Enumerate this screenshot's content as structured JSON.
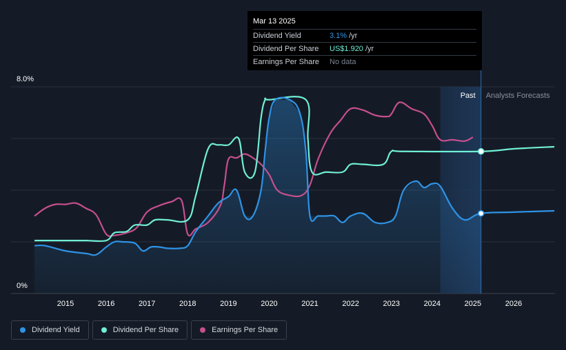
{
  "chart_data": {
    "type": "line",
    "ylim": [
      0,
      8.0
    ],
    "y_top_label": "8.0%",
    "y_bottom_label": "0%",
    "x_tick_labels": [
      "2015",
      "2016",
      "2017",
      "2018",
      "2019",
      "2020",
      "2021",
      "2022",
      "2023",
      "2024",
      "2025",
      "2026"
    ],
    "past_label": "Past",
    "forecast_label": "Analysts Forecasts",
    "grid": true,
    "series": [
      {
        "name": "Dividend Yield",
        "color": "#2e93e6",
        "unit": "%",
        "points": [
          [
            2014.24,
            1.85
          ],
          [
            2014.5,
            1.85
          ],
          [
            2015.0,
            1.65
          ],
          [
            2015.5,
            1.55
          ],
          [
            2015.75,
            1.5
          ],
          [
            2016.0,
            1.8
          ],
          [
            2016.2,
            2.0
          ],
          [
            2016.4,
            2.0
          ],
          [
            2016.7,
            1.95
          ],
          [
            2016.9,
            1.65
          ],
          [
            2017.1,
            1.8
          ],
          [
            2017.3,
            1.8
          ],
          [
            2017.5,
            1.75
          ],
          [
            2017.8,
            1.75
          ],
          [
            2018.0,
            1.85
          ],
          [
            2018.2,
            2.4
          ],
          [
            2018.5,
            3.0
          ],
          [
            2018.75,
            3.5
          ],
          [
            2019.0,
            3.75
          ],
          [
            2019.2,
            4.0
          ],
          [
            2019.4,
            3.0
          ],
          [
            2019.6,
            3.0
          ],
          [
            2019.8,
            4.0
          ],
          [
            2019.9,
            5.5
          ],
          [
            2020.0,
            6.8
          ],
          [
            2020.15,
            7.5
          ],
          [
            2020.5,
            7.5
          ],
          [
            2020.75,
            7.0
          ],
          [
            2020.9,
            5.5
          ],
          [
            2021.0,
            3.0
          ],
          [
            2021.2,
            3.0
          ],
          [
            2021.4,
            3.0
          ],
          [
            2021.6,
            3.0
          ],
          [
            2021.8,
            2.75
          ],
          [
            2022.0,
            3.0
          ],
          [
            2022.3,
            3.1
          ],
          [
            2022.6,
            2.75
          ],
          [
            2022.9,
            2.75
          ],
          [
            2023.1,
            3.0
          ],
          [
            2023.3,
            4.0
          ],
          [
            2023.6,
            4.35
          ],
          [
            2023.8,
            4.1
          ],
          [
            2024.0,
            4.25
          ],
          [
            2024.2,
            4.15
          ],
          [
            2024.5,
            3.3
          ],
          [
            2024.8,
            2.85
          ],
          [
            2025.2,
            3.1
          ],
          [
            2026.0,
            3.15
          ],
          [
            2027.0,
            3.2
          ]
        ]
      },
      {
        "name": "Dividend Per Share",
        "color": "#70f0d6",
        "unit": "US$",
        "points": [
          [
            2014.24,
            2.05
          ],
          [
            2014.5,
            2.05
          ],
          [
            2015.0,
            2.05
          ],
          [
            2015.5,
            2.05
          ],
          [
            2016.0,
            2.05
          ],
          [
            2016.2,
            2.35
          ],
          [
            2016.5,
            2.4
          ],
          [
            2016.7,
            2.65
          ],
          [
            2017.0,
            2.65
          ],
          [
            2017.2,
            2.85
          ],
          [
            2017.5,
            2.85
          ],
          [
            2018.0,
            2.85
          ],
          [
            2018.2,
            3.8
          ],
          [
            2018.5,
            5.6
          ],
          [
            2018.75,
            5.75
          ],
          [
            2019.0,
            5.75
          ],
          [
            2019.25,
            6.0
          ],
          [
            2019.4,
            4.7
          ],
          [
            2019.65,
            4.7
          ],
          [
            2019.8,
            6.8
          ],
          [
            2019.9,
            7.5
          ],
          [
            2020.0,
            7.5
          ],
          [
            2020.9,
            7.5
          ],
          [
            2020.95,
            6.0
          ],
          [
            2021.05,
            4.7
          ],
          [
            2021.4,
            4.7
          ],
          [
            2021.8,
            4.7
          ],
          [
            2022.0,
            5.0
          ],
          [
            2022.3,
            5.0
          ],
          [
            2022.8,
            5.0
          ],
          [
            2023.0,
            5.5
          ],
          [
            2023.3,
            5.5
          ],
          [
            2025.2,
            5.5
          ],
          [
            2026.0,
            5.6
          ],
          [
            2027.0,
            5.68
          ]
        ]
      },
      {
        "name": "Earnings Per Share",
        "color": "#c64f8e",
        "unit": "US$",
        "points": [
          [
            2014.24,
            3.0
          ],
          [
            2014.5,
            3.3
          ],
          [
            2014.75,
            3.45
          ],
          [
            2015.0,
            3.45
          ],
          [
            2015.25,
            3.5
          ],
          [
            2015.5,
            3.3
          ],
          [
            2015.75,
            3.05
          ],
          [
            2016.0,
            2.3
          ],
          [
            2016.2,
            2.25
          ],
          [
            2016.5,
            2.35
          ],
          [
            2016.75,
            2.55
          ],
          [
            2017.0,
            3.15
          ],
          [
            2017.3,
            3.4
          ],
          [
            2017.6,
            3.55
          ],
          [
            2017.85,
            3.6
          ],
          [
            2018.0,
            2.3
          ],
          [
            2018.2,
            2.5
          ],
          [
            2018.5,
            2.75
          ],
          [
            2018.8,
            3.4
          ],
          [
            2018.9,
            4.2
          ],
          [
            2019.0,
            5.2
          ],
          [
            2019.2,
            5.25
          ],
          [
            2019.4,
            5.4
          ],
          [
            2019.6,
            5.25
          ],
          [
            2019.8,
            5.0
          ],
          [
            2020.0,
            4.6
          ],
          [
            2020.2,
            4.0
          ],
          [
            2020.5,
            3.8
          ],
          [
            2020.8,
            3.8
          ],
          [
            2021.0,
            4.2
          ],
          [
            2021.2,
            5.2
          ],
          [
            2021.5,
            6.2
          ],
          [
            2021.75,
            6.7
          ],
          [
            2022.0,
            7.15
          ],
          [
            2022.3,
            7.1
          ],
          [
            2022.6,
            6.9
          ],
          [
            2022.9,
            6.85
          ],
          [
            2023.0,
            6.95
          ],
          [
            2023.2,
            7.4
          ],
          [
            2023.5,
            7.15
          ],
          [
            2023.8,
            6.95
          ],
          [
            2024.0,
            6.5
          ],
          [
            2024.2,
            5.95
          ],
          [
            2024.5,
            5.95
          ],
          [
            2024.8,
            5.9
          ],
          [
            2025.0,
            6.05
          ]
        ]
      }
    ],
    "markers": [
      {
        "series": "Dividend Per Share",
        "x": 2025.2,
        "y": 5.5
      },
      {
        "series": "Dividend Yield",
        "x": 2025.2,
        "y": 3.1
      }
    ]
  },
  "tooltip": {
    "date": "Mar 13 2025",
    "rows": [
      {
        "label": "Dividend Yield",
        "value": "3.1%",
        "unit": "/yr"
      },
      {
        "label": "Dividend Per Share",
        "value": "US$1.920",
        "unit": "/yr"
      },
      {
        "label": "Earnings Per Share",
        "value": "",
        "unit": "",
        "nodata": "No data"
      }
    ]
  },
  "legend": [
    {
      "label": "Dividend Yield",
      "color": "#2e93e6"
    },
    {
      "label": "Dividend Per Share",
      "color": "#70f0d6"
    },
    {
      "label": "Earnings Per Share",
      "color": "#c64f8e"
    }
  ]
}
